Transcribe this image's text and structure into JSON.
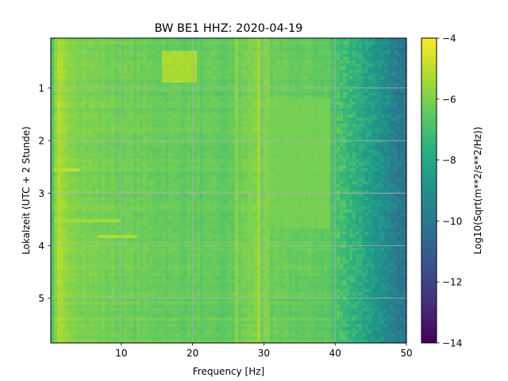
{
  "chart_data": {
    "type": "heatmap",
    "title": "BW BE1  HHZ: 2020-04-19",
    "xlabel": "Frequency [Hz]",
    "ylabel": "Lokalzeit (UTC + 2 Stunde)",
    "colorbar_label": "Log10(Sqrt(m**2/s**2/Hz))",
    "colormap": "viridis",
    "xlim": [
      0.1,
      50
    ],
    "ylim": [
      5.85,
      0.05
    ],
    "clim": [
      -14,
      -4
    ],
    "x_ticks": [
      10,
      20,
      30,
      40,
      50
    ],
    "x_tick_labels": [
      "10",
      "20",
      "30",
      "40",
      "50"
    ],
    "y_ticks": [
      1,
      2,
      3,
      4,
      5
    ],
    "y_tick_labels": [
      "1",
      "2",
      "3",
      "4",
      "5"
    ],
    "colorbar_ticks": [
      -4,
      -6,
      -8,
      -10,
      -12,
      -14
    ],
    "colorbar_tick_labels": [
      "−4",
      "−6",
      "−8",
      "−10",
      "−12",
      "−14"
    ],
    "grid": true,
    "typical_level_profile": {
      "frequency_hz": [
        0.5,
        1,
        2,
        5,
        10,
        15,
        20,
        25,
        29,
        30,
        35,
        39,
        40,
        42,
        44,
        46,
        48,
        50
      ],
      "log10_value": [
        -6.8,
        -5.2,
        -5.6,
        -6.0,
        -6.2,
        -6.3,
        -6.4,
        -6.5,
        -5.9,
        -6.3,
        -6.4,
        -6.5,
        -7.0,
        -7.5,
        -8.2,
        -9.0,
        -9.8,
        -10.4
      ]
    },
    "features": [
      {
        "type": "vertical_line",
        "frequency_hz": 26.2,
        "log10_value": -5.8
      },
      {
        "type": "vertical_line",
        "frequency_hz": 28.0,
        "log10_value": -6.0
      },
      {
        "type": "vertical_line",
        "frequency_hz": 29.3,
        "log10_value": -5.5
      },
      {
        "type": "vertical_line",
        "frequency_hz": 30.4,
        "log10_value": -5.9
      },
      {
        "type": "band",
        "frequency_range": [
          29.8,
          39.5
        ],
        "time_range": [
          1.2,
          3.65
        ],
        "log10_value": -6.1
      },
      {
        "type": "patch",
        "frequency_range": [
          15.5,
          20.5
        ],
        "time_range": [
          0.3,
          0.9
        ],
        "log10_value": -5.3
      },
      {
        "type": "horizontal_streak",
        "time": 3.82,
        "frequency_range": [
          7,
          12
        ],
        "log10_value": -5.2
      },
      {
        "type": "horizontal_streak",
        "time": 2.58,
        "frequency_range": [
          0.5,
          4
        ],
        "log10_value": -5.0
      },
      {
        "type": "horizontal_streak",
        "time": 3.5,
        "frequency_range": [
          0.5,
          10
        ],
        "log10_value": -5.4
      }
    ]
  }
}
